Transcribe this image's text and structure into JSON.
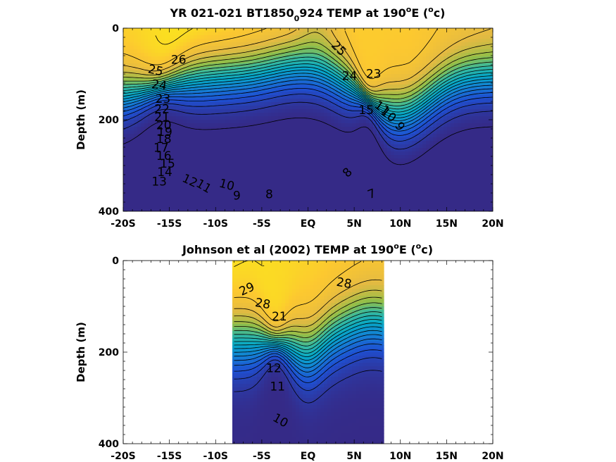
{
  "chart_data": [
    {
      "type": "contour",
      "title": {
        "pre": "YR 021-021 BT1850",
        "sub": "0",
        "mid": "924 TEMP at 190",
        "sup": "o",
        "post": "E (",
        "sup2": "o",
        "end": "c)"
      },
      "ylabel": "Depth (m)",
      "xlim": [
        -20,
        20
      ],
      "ylim": [
        0,
        400
      ],
      "y_reversed": true,
      "x_ticks": [
        {
          "value": -20,
          "label": "-20S"
        },
        {
          "value": -15,
          "label": "-15S"
        },
        {
          "value": -10,
          "label": "-10S"
        },
        {
          "value": -5,
          "label": "-5S"
        },
        {
          "value": 0,
          "label": "EQ"
        },
        {
          "value": 5,
          "label": "5N"
        },
        {
          "value": 10,
          "label": "10N"
        },
        {
          "value": 15,
          "label": "15N"
        },
        {
          "value": 20,
          "label": "20N"
        }
      ],
      "y_ticks": [
        {
          "value": 0,
          "label": "0"
        },
        {
          "value": 200,
          "label": "200"
        },
        {
          "value": 400,
          "label": "400"
        }
      ],
      "data_extent": [
        -20,
        20
      ],
      "contour_levels": [
        7,
        8,
        9,
        10,
        11,
        12,
        13,
        14,
        15,
        16,
        17,
        18,
        19,
        20,
        21,
        22,
        23,
        24,
        25,
        26
      ],
      "contour_labels": [
        {
          "text": "26",
          "x": -14.0,
          "y": 70,
          "rot": 0
        },
        {
          "text": "25",
          "x": -16.5,
          "y": 93,
          "rot": 12
        },
        {
          "text": "24",
          "x": -16.1,
          "y": 125,
          "rot": 8
        },
        {
          "text": "23",
          "x": -15.7,
          "y": 155,
          "rot": 0
        },
        {
          "text": "22",
          "x": -15.8,
          "y": 178,
          "rot": 0
        },
        {
          "text": "21",
          "x": -15.8,
          "y": 195,
          "rot": 0
        },
        {
          "text": "20",
          "x": -15.6,
          "y": 213,
          "rot": 0
        },
        {
          "text": "19",
          "x": -15.5,
          "y": 228,
          "rot": 0
        },
        {
          "text": "18",
          "x": -15.6,
          "y": 243,
          "rot": 0
        },
        {
          "text": "17",
          "x": -15.9,
          "y": 262,
          "rot": 0
        },
        {
          "text": "16",
          "x": -15.6,
          "y": 280,
          "rot": 0
        },
        {
          "text": "15",
          "x": -15.2,
          "y": 297,
          "rot": 0
        },
        {
          "text": "14",
          "x": -15.5,
          "y": 315,
          "rot": 0
        },
        {
          "text": "13",
          "x": -16.1,
          "y": 336,
          "rot": 0
        },
        {
          "text": "12",
          "x": -12.8,
          "y": 334,
          "rot": 25
        },
        {
          "text": "11",
          "x": -11.3,
          "y": 346,
          "rot": 30
        },
        {
          "text": "10",
          "x": -8.8,
          "y": 343,
          "rot": 15
        },
        {
          "text": "9",
          "x": -7.7,
          "y": 367,
          "rot": 0
        },
        {
          "text": "8",
          "x": -4.2,
          "y": 364,
          "rot": 0
        },
        {
          "text": "25",
          "x": 3.3,
          "y": 45,
          "rot": 45
        },
        {
          "text": "24",
          "x": 4.5,
          "y": 105,
          "rot": 0
        },
        {
          "text": "23",
          "x": 7.1,
          "y": 101,
          "rot": 0
        },
        {
          "text": "15",
          "x": 6.3,
          "y": 180,
          "rot": 0
        },
        {
          "text": "11",
          "x": 8.0,
          "y": 175,
          "rot": 35
        },
        {
          "text": "10",
          "x": 8.7,
          "y": 190,
          "rot": 40
        },
        {
          "text": "9",
          "x": 9.9,
          "y": 215,
          "rot": 55
        },
        {
          "text": "8",
          "x": 4.3,
          "y": 316,
          "rot": -45
        },
        {
          "text": "7",
          "x": 6.9,
          "y": 363,
          "rot": -20
        }
      ]
    },
    {
      "type": "contour",
      "title": {
        "pre": "Johnson et al (2002) TEMP at 190",
        "sup": "o",
        "post": "E (",
        "sup2": "o",
        "end": "c)"
      },
      "ylabel": "Depth (m)",
      "xlim": [
        -20,
        20
      ],
      "ylim": [
        0,
        400
      ],
      "y_reversed": true,
      "x_ticks": [
        {
          "value": -20,
          "label": "-20S"
        },
        {
          "value": -15,
          "label": "-15S"
        },
        {
          "value": -10,
          "label": "-10S"
        },
        {
          "value": -5,
          "label": "-5S"
        },
        {
          "value": 0,
          "label": "EQ"
        },
        {
          "value": 5,
          "label": "5N"
        },
        {
          "value": 10,
          "label": "10N"
        },
        {
          "value": 15,
          "label": "15N"
        },
        {
          "value": 20,
          "label": "20N"
        }
      ],
      "y_ticks": [
        {
          "value": 0,
          "label": "0"
        },
        {
          "value": 200,
          "label": "200"
        },
        {
          "value": 400,
          "label": "400"
        }
      ],
      "data_extent": [
        -8,
        8
      ],
      "contour_levels": [
        10,
        11,
        12,
        13,
        14,
        15,
        16,
        17,
        18,
        19,
        20,
        21,
        22,
        23,
        24,
        25,
        26,
        27,
        28,
        29
      ],
      "contour_labels": [
        {
          "text": "29",
          "x": -6.6,
          "y": 63,
          "rot": -25
        },
        {
          "text": "28",
          "x": -4.9,
          "y": 95,
          "rot": 10
        },
        {
          "text": "28",
          "x": 3.9,
          "y": 50,
          "rot": 10
        },
        {
          "text": "21",
          "x": -3.1,
          "y": 123,
          "rot": 0
        },
        {
          "text": "12",
          "x": -3.7,
          "y": 236,
          "rot": 0
        },
        {
          "text": "11",
          "x": -3.3,
          "y": 276,
          "rot": 0
        },
        {
          "text": "10",
          "x": -3.0,
          "y": 350,
          "rot": 30
        }
      ]
    }
  ]
}
